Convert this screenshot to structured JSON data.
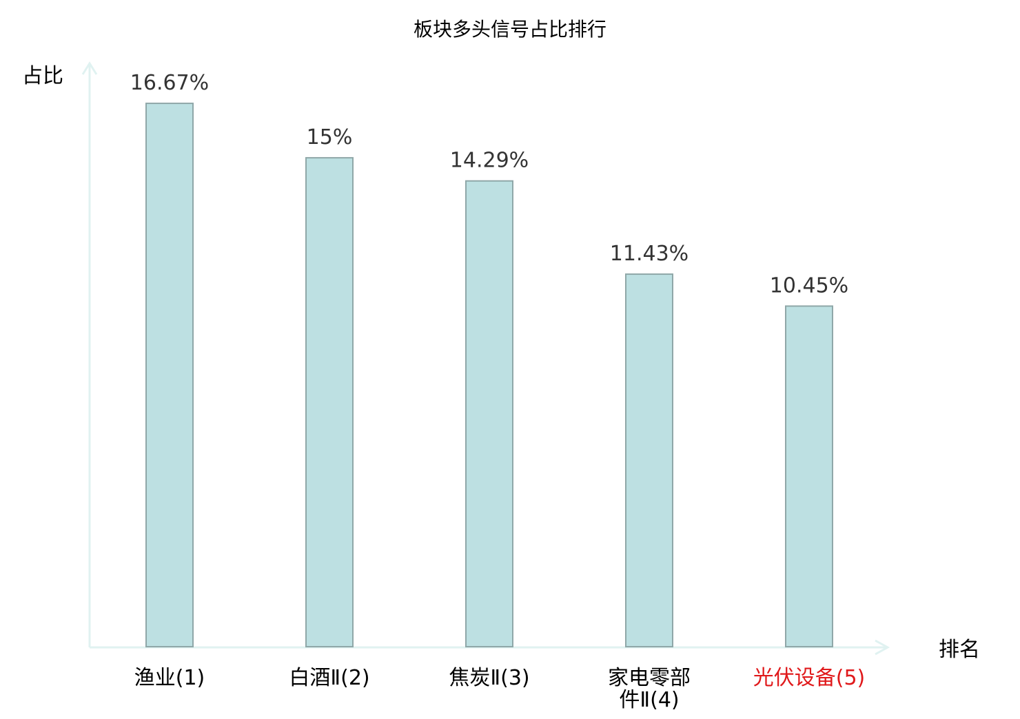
{
  "colors": {
    "bar_fill": "#bde0e2",
    "bar_stroke": "#8fa7a8",
    "axis": "#e0f2f1",
    "text": "#333333",
    "highlight": "#e0191b"
  },
  "chart_data": {
    "type": "bar",
    "title": "板块多头信号占比排行",
    "xlabel": "排名",
    "ylabel": "占比",
    "ylim": [
      0,
      18.5
    ],
    "grid": false,
    "categories": [
      {
        "lines": [
          "渔业(1)"
        ],
        "highlight": false
      },
      {
        "lines": [
          "白酒Ⅱ(2)"
        ],
        "highlight": false
      },
      {
        "lines": [
          "焦炭Ⅱ(3)"
        ],
        "highlight": false
      },
      {
        "lines": [
          "家电零部",
          "件Ⅱ(4)"
        ],
        "highlight": false
      },
      {
        "lines": [
          "光伏设备(5)"
        ],
        "highlight": true
      }
    ],
    "values": [
      16.67,
      15,
      14.29,
      11.43,
      10.45
    ],
    "value_labels": [
      "16.67%",
      "15%",
      "14.29%",
      "11.43%",
      "10.45%"
    ]
  }
}
